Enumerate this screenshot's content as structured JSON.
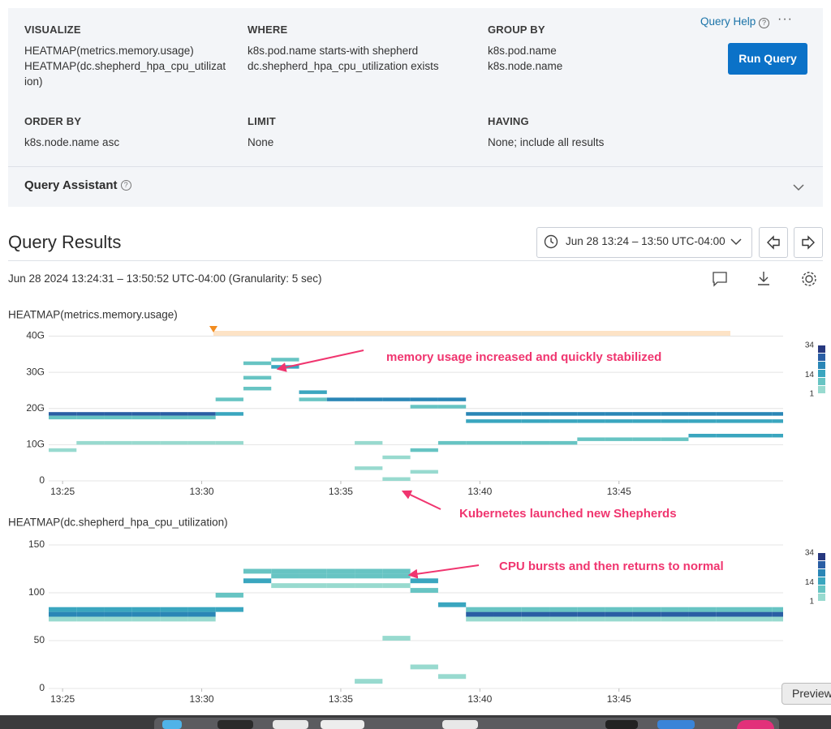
{
  "query": {
    "help": "Query Help",
    "run": "Run Query",
    "assistant": "Query Assistant",
    "fields": [
      {
        "label": "VISUALIZE",
        "values": [
          "HEATMAP(metrics.memory.usage)",
          "HEATMAP(dc.shepherd_hpa_cpu_utilization)"
        ]
      },
      {
        "label": "WHERE",
        "values": [
          "k8s.pod.name starts-with shepherd",
          "dc.shepherd_hpa_cpu_utilization exists"
        ]
      },
      {
        "label": "GROUP BY",
        "values": [
          "k8s.pod.name",
          "k8s.node.name"
        ]
      },
      {
        "label": "ORDER BY",
        "values": [
          "k8s.node.name asc"
        ]
      },
      {
        "label": "LIMIT",
        "values": [
          "None"
        ]
      },
      {
        "label": "HAVING",
        "values": [
          "None; include all results"
        ]
      }
    ]
  },
  "results": {
    "title": "Query Results",
    "time_range": "Jun 28 13:24 – 13:50 UTC-04:00",
    "range_detail": "Jun 28 2024 13:24:31 – 13:50:52 UTC-04:00 (Granularity: 5 sec)"
  },
  "dock": {
    "tooltip": "Preview"
  },
  "chart_data": [
    {
      "type": "heatmap",
      "title": "HEATMAP(metrics.memory.usage)",
      "xlim": [
        804.5,
        830.9
      ],
      "xticks": [
        {
          "value": 805,
          "label": "13:25"
        },
        {
          "value": 810,
          "label": "13:30"
        },
        {
          "value": 815,
          "label": "13:35"
        },
        {
          "value": 820,
          "label": "13:40"
        },
        {
          "value": 825,
          "label": "13:45"
        }
      ],
      "ylim": [
        0,
        41
      ],
      "yticks": [
        0,
        {
          "value": 10,
          "label": "10G"
        },
        {
          "value": 20,
          "label": "20G"
        },
        {
          "value": 30,
          "label": "30G"
        },
        {
          "value": 40,
          "label": "40G"
        }
      ],
      "grid": true,
      "bin_width": 1,
      "bin_height": 1,
      "legend": {
        "ticks": [
          34,
          14,
          1
        ],
        "colors": [
          "#27387f",
          "#2a5ea4",
          "#2a86b6",
          "#3aa6bf",
          "#67c4c3",
          "#98dacf"
        ]
      },
      "annotations": [
        "memory usage increased and quickly stabilized",
        "Kubernetes launched new Shepherds"
      ],
      "cells": [
        [
          804.5,
          18,
          30
        ],
        [
          804.5,
          17,
          10
        ],
        [
          804.5,
          8,
          2
        ],
        [
          805.5,
          18,
          30
        ],
        [
          805.5,
          17,
          10
        ],
        [
          805.5,
          10,
          2
        ],
        [
          806.5,
          18,
          30
        ],
        [
          806.5,
          17,
          10
        ],
        [
          806.5,
          10,
          2
        ],
        [
          807.5,
          18,
          30
        ],
        [
          807.5,
          17,
          10
        ],
        [
          807.5,
          10,
          2
        ],
        [
          808.5,
          18,
          30
        ],
        [
          808.5,
          17,
          10
        ],
        [
          808.5,
          10,
          2
        ],
        [
          809.5,
          18,
          30
        ],
        [
          809.5,
          17,
          10
        ],
        [
          809.5,
          10,
          2
        ],
        [
          810.5,
          18,
          14
        ],
        [
          810.5,
          22,
          6
        ],
        [
          810.5,
          10,
          2
        ],
        [
          811.5,
          25,
          5
        ],
        [
          811.5,
          28,
          10
        ],
        [
          811.5,
          32,
          8
        ],
        [
          812.5,
          31,
          14
        ],
        [
          812.5,
          33,
          6
        ],
        [
          813.5,
          24,
          14
        ],
        [
          813.5,
          22,
          8
        ],
        [
          814.5,
          22,
          20
        ],
        [
          815.5,
          22,
          20
        ],
        [
          815.5,
          3,
          1
        ],
        [
          815.5,
          10,
          1
        ],
        [
          816.5,
          22,
          20
        ],
        [
          816.5,
          0,
          3
        ],
        [
          816.5,
          6,
          2
        ],
        [
          817.5,
          22,
          18
        ],
        [
          817.5,
          20,
          6
        ],
        [
          817.5,
          8,
          6
        ],
        [
          817.5,
          2,
          3
        ],
        [
          818.5,
          22,
          18
        ],
        [
          818.5,
          20,
          6
        ],
        [
          818.5,
          10,
          8
        ],
        [
          819.5,
          18,
          20
        ],
        [
          819.5,
          16,
          12
        ],
        [
          819.5,
          10,
          8
        ],
        [
          820.5,
          18,
          20
        ],
        [
          820.5,
          16,
          12
        ],
        [
          820.5,
          10,
          8
        ],
        [
          821.5,
          18,
          20
        ],
        [
          821.5,
          16,
          12
        ],
        [
          821.5,
          10,
          8
        ],
        [
          822.5,
          18,
          20
        ],
        [
          822.5,
          16,
          12
        ],
        [
          822.5,
          10,
          8
        ],
        [
          823.5,
          18,
          20
        ],
        [
          823.5,
          16,
          12
        ],
        [
          823.5,
          11,
          10
        ],
        [
          824.5,
          18,
          20
        ],
        [
          824.5,
          16,
          12
        ],
        [
          824.5,
          11,
          10
        ],
        [
          825.5,
          18,
          20
        ],
        [
          825.5,
          16,
          12
        ],
        [
          825.5,
          11,
          10
        ],
        [
          826.5,
          18,
          20
        ],
        [
          826.5,
          16,
          12
        ],
        [
          826.5,
          11,
          10
        ],
        [
          827.5,
          18,
          20
        ],
        [
          827.5,
          16,
          12
        ],
        [
          827.5,
          12,
          12
        ],
        [
          828.5,
          18,
          20
        ],
        [
          828.5,
          16,
          12
        ],
        [
          828.5,
          12,
          12
        ],
        [
          829.5,
          18,
          20
        ],
        [
          829.5,
          16,
          12
        ],
        [
          829.5,
          12,
          12
        ],
        [
          830.5,
          18,
          20
        ],
        [
          830.5,
          16,
          12
        ],
        [
          830.5,
          12,
          12
        ]
      ]
    },
    {
      "type": "heatmap",
      "title": "HEATMAP(dc.shepherd_hpa_cpu_utilization)",
      "xlim": [
        804.5,
        830.9
      ],
      "xticks": [
        {
          "value": 805,
          "label": "13:25"
        },
        {
          "value": 810,
          "label": "13:30"
        },
        {
          "value": 815,
          "label": "13:35"
        },
        {
          "value": 820,
          "label": "13:40"
        },
        {
          "value": 825,
          "label": "13:45"
        }
      ],
      "ylim": [
        0,
        150
      ],
      "yticks": [
        0,
        50,
        100,
        150
      ],
      "grid": true,
      "bin_width": 1,
      "bin_height": 5,
      "legend": {
        "ticks": [
          34,
          14,
          1
        ],
        "colors": [
          "#27387f",
          "#2a5ea4",
          "#2a86b6",
          "#3aa6bf",
          "#67c4c3",
          "#98dacf"
        ]
      },
      "annotations": [
        "CPU bursts and then returns to normal"
      ],
      "cells": [
        [
          804.5,
          75,
          24
        ],
        [
          804.5,
          80,
          12
        ],
        [
          804.5,
          70,
          4
        ],
        [
          805.5,
          75,
          24
        ],
        [
          805.5,
          80,
          12
        ],
        [
          805.5,
          70,
          4
        ],
        [
          806.5,
          75,
          24
        ],
        [
          806.5,
          80,
          12
        ],
        [
          806.5,
          70,
          4
        ],
        [
          807.5,
          75,
          24
        ],
        [
          807.5,
          80,
          12
        ],
        [
          807.5,
          70,
          4
        ],
        [
          808.5,
          75,
          24
        ],
        [
          808.5,
          80,
          12
        ],
        [
          808.5,
          70,
          4
        ],
        [
          809.5,
          75,
          24
        ],
        [
          809.5,
          80,
          12
        ],
        [
          809.5,
          70,
          4
        ],
        [
          810.5,
          80,
          14
        ],
        [
          810.5,
          95,
          6
        ],
        [
          811.5,
          110,
          12
        ],
        [
          811.5,
          120,
          8
        ],
        [
          812.5,
          115,
          10
        ],
        [
          812.5,
          120,
          8
        ],
        [
          812.5,
          105,
          4
        ],
        [
          813.5,
          115,
          10
        ],
        [
          813.5,
          120,
          8
        ],
        [
          813.5,
          105,
          4
        ],
        [
          814.5,
          115,
          10
        ],
        [
          814.5,
          120,
          8
        ],
        [
          814.5,
          105,
          4
        ],
        [
          815.5,
          115,
          10
        ],
        [
          815.5,
          120,
          8
        ],
        [
          815.5,
          105,
          4
        ],
        [
          815.5,
          5,
          1
        ],
        [
          816.5,
          115,
          10
        ],
        [
          816.5,
          120,
          8
        ],
        [
          816.5,
          105,
          4
        ],
        [
          816.5,
          50,
          1
        ],
        [
          817.5,
          110,
          12
        ],
        [
          817.5,
          100,
          6
        ],
        [
          817.5,
          20,
          2
        ],
        [
          818.5,
          85,
          12
        ],
        [
          818.5,
          10,
          2
        ],
        [
          819.5,
          75,
          26
        ],
        [
          819.5,
          80,
          10
        ],
        [
          819.5,
          70,
          4
        ],
        [
          820.5,
          75,
          26
        ],
        [
          820.5,
          80,
          10
        ],
        [
          820.5,
          70,
          4
        ],
        [
          821.5,
          75,
          26
        ],
        [
          821.5,
          80,
          10
        ],
        [
          821.5,
          70,
          4
        ],
        [
          822.5,
          75,
          26
        ],
        [
          822.5,
          80,
          10
        ],
        [
          822.5,
          70,
          4
        ],
        [
          823.5,
          75,
          26
        ],
        [
          823.5,
          80,
          10
        ],
        [
          823.5,
          70,
          4
        ],
        [
          824.5,
          75,
          26
        ],
        [
          824.5,
          80,
          10
        ],
        [
          824.5,
          70,
          4
        ],
        [
          825.5,
          75,
          26
        ],
        [
          825.5,
          80,
          10
        ],
        [
          825.5,
          70,
          4
        ],
        [
          826.5,
          75,
          26
        ],
        [
          826.5,
          80,
          10
        ],
        [
          826.5,
          70,
          4
        ],
        [
          827.5,
          75,
          26
        ],
        [
          827.5,
          80,
          10
        ],
        [
          827.5,
          70,
          4
        ],
        [
          828.5,
          75,
          26
        ],
        [
          828.5,
          80,
          10
        ],
        [
          828.5,
          70,
          4
        ],
        [
          829.5,
          75,
          26
        ],
        [
          829.5,
          80,
          10
        ],
        [
          829.5,
          70,
          4
        ],
        [
          830.5,
          75,
          26
        ],
        [
          830.5,
          80,
          10
        ],
        [
          830.5,
          70,
          4
        ]
      ]
    }
  ]
}
